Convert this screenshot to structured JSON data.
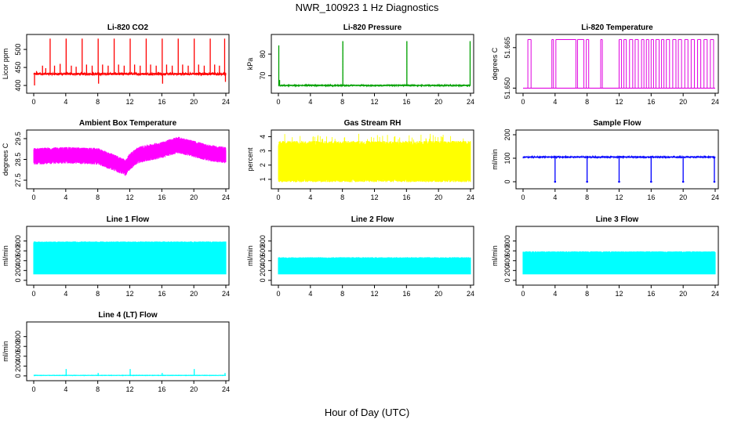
{
  "figure": {
    "title": "NWR_100923  1 Hz Diagnostics",
    "xlabel": "Hour of Day (UTC)"
  },
  "chart_data": [
    {
      "type": "line",
      "id": "co2",
      "title": "Li-820 CO2",
      "ylabel": "Licor ppm",
      "color": "#ff0000",
      "xlim": [
        0,
        24
      ],
      "ylim": [
        385,
        535
      ],
      "xticks": [
        0,
        4,
        8,
        12,
        16,
        20,
        24
      ],
      "xtick_labels": [
        "0",
        "4",
        "8",
        "12",
        "16",
        "20",
        "24"
      ],
      "yticks": [
        400,
        450,
        500
      ],
      "ytick_labels": [
        "400",
        "450",
        "500"
      ],
      "series": [
        {
          "name": "CO2",
          "baseline": 432,
          "noise": 3,
          "spikes": [
            [
              0.1,
              400
            ],
            [
              0.35,
              440
            ],
            [
              1.1,
              455
            ],
            [
              1.5,
              448
            ],
            [
              2.05,
              530
            ],
            [
              2.6,
              455
            ],
            [
              3.3,
              460
            ],
            [
              4.05,
              530
            ],
            [
              4.7,
              455
            ],
            [
              5.3,
              452
            ],
            [
              6.05,
              530
            ],
            [
              6.6,
              458
            ],
            [
              7.3,
              455
            ],
            [
              8.05,
              530
            ],
            [
              8.1,
              405
            ],
            [
              8.6,
              458
            ],
            [
              9.3,
              455
            ],
            [
              10.05,
              530
            ],
            [
              10.6,
              458
            ],
            [
              11.3,
              455
            ],
            [
              12.05,
              530
            ],
            [
              12.6,
              458
            ],
            [
              13.3,
              455
            ],
            [
              14.05,
              530
            ],
            [
              14.6,
              458
            ],
            [
              15.3,
              455
            ],
            [
              16.05,
              530
            ],
            [
              16.1,
              405
            ],
            [
              16.6,
              458
            ],
            [
              17.3,
              455
            ],
            [
              18.05,
              530
            ],
            [
              18.6,
              458
            ],
            [
              19.3,
              455
            ],
            [
              20.05,
              530
            ],
            [
              20.6,
              458
            ],
            [
              21.3,
              455
            ],
            [
              22.05,
              530
            ],
            [
              22.6,
              458
            ],
            [
              23.2,
              455
            ],
            [
              23.85,
              530
            ],
            [
              23.95,
              410
            ]
          ]
        }
      ]
    },
    {
      "type": "line",
      "id": "pressure",
      "title": "Li-820 Pressure",
      "ylabel": "kPa",
      "color": "#00a000",
      "xlim": [
        0,
        24
      ],
      "ylim": [
        63,
        88
      ],
      "xticks": [
        0,
        4,
        8,
        12,
        16,
        20,
        24
      ],
      "xtick_labels": [
        "0",
        "4",
        "8",
        "12",
        "16",
        "20",
        "24"
      ],
      "yticks": [
        70,
        80
      ],
      "ytick_labels": [
        "70",
        "80"
      ],
      "series": [
        {
          "name": "Pressure",
          "baseline": 65.5,
          "noise": 0.2,
          "spikes": [
            [
              0.05,
              84
            ],
            [
              0.15,
              68
            ],
            [
              8.05,
              86
            ],
            [
              16.05,
              86
            ],
            [
              23.95,
              86
            ]
          ]
        }
      ]
    },
    {
      "type": "line",
      "id": "licor_temp",
      "title": "Li-820 Temperature",
      "ylabel": "degrees C",
      "color": "#e000e0",
      "xlim": [
        0,
        24
      ],
      "ylim": [
        51.649,
        51.669
      ],
      "xticks": [
        0,
        4,
        8,
        12,
        16,
        20,
        24
      ],
      "xtick_labels": [
        "0",
        "4",
        "8",
        "12",
        "16",
        "20",
        "24"
      ],
      "yticks": [
        51.65,
        51.665
      ],
      "ytick_labels": [
        "51.650",
        "51.665"
      ],
      "series": [
        {
          "name": "Temperature",
          "low": 51.65,
          "high": 51.668,
          "jumps": [
            0.6,
            1.0,
            3.6,
            3.8,
            4.1,
            6.6,
            6.8,
            7.6,
            7.9,
            8.2,
            9.7,
            9.9,
            12.0,
            12.3,
            12.6,
            12.9,
            13.3,
            13.7,
            14.0,
            14.4,
            14.8,
            15.1,
            15.4,
            15.7,
            16.0,
            16.3,
            16.6,
            17.0,
            17.3,
            17.6,
            17.9,
            18.3,
            18.7,
            19.1,
            19.4,
            19.8,
            20.2,
            20.6,
            21.0,
            21.4,
            21.8,
            22.2,
            22.6,
            23.0,
            23.4,
            23.8
          ]
        }
      ]
    },
    {
      "type": "line",
      "id": "ambient",
      "title": "Ambient Box Temperature",
      "ylabel": "degrees C",
      "color": "#ff00ff",
      "xlim": [
        0,
        24
      ],
      "ylim": [
        27.2,
        29.8
      ],
      "xticks": [
        0,
        4,
        8,
        12,
        16,
        20,
        24
      ],
      "xtick_labels": [
        "0",
        "4",
        "8",
        "12",
        "16",
        "20",
        "24"
      ],
      "yticks": [
        27.5,
        28.5,
        29.5
      ],
      "ytick_labels": [
        "27.5",
        "28.5",
        "29.5"
      ],
      "series": [
        {
          "name": "Ambient",
          "mean_x": [
            0,
            4,
            8,
            10,
            11.5,
            12,
            13,
            14,
            16,
            18,
            20,
            22,
            24
          ],
          "mean_y": [
            28.65,
            28.7,
            28.65,
            28.35,
            28.1,
            28.4,
            28.7,
            28.8,
            28.95,
            29.2,
            29.0,
            28.8,
            28.7
          ],
          "amplitude": 0.4
        }
      ]
    },
    {
      "type": "line",
      "id": "rh",
      "title": "Gas Stream RH",
      "ylabel": "percent",
      "color": "#ffff00",
      "xlim": [
        0,
        24
      ],
      "ylim": [
        0.5,
        4.3
      ],
      "xticks": [
        0,
        4,
        8,
        12,
        16,
        20,
        24
      ],
      "xtick_labels": [
        "0",
        "4",
        "8",
        "12",
        "16",
        "20",
        "24"
      ],
      "yticks": [
        1,
        2,
        3,
        4
      ],
      "ytick_labels": [
        "1",
        "2",
        "3",
        "4"
      ],
      "series": [
        {
          "name": "RH",
          "low": 0.8,
          "high": 3.7,
          "mean": 2.25
        }
      ]
    },
    {
      "type": "line",
      "id": "sample_flow",
      "title": "Sample Flow",
      "ylabel": "ml/min",
      "color": "#0000ff",
      "xlim": [
        0,
        24
      ],
      "ylim": [
        -20,
        210
      ],
      "xticks": [
        0,
        4,
        8,
        12,
        16,
        20,
        24
      ],
      "xtick_labels": [
        "0",
        "4",
        "8",
        "12",
        "16",
        "20",
        "24"
      ],
      "yticks": [
        0,
        100,
        200
      ],
      "ytick_labels": [
        "0",
        "100",
        "200"
      ],
      "series": [
        {
          "name": "Sample Flow",
          "baseline": 105,
          "noise": 2,
          "dips": [
            [
              4.0,
              0
            ],
            [
              8.0,
              0
            ],
            [
              12.0,
              0
            ],
            [
              16.0,
              0
            ],
            [
              20.0,
              0
            ],
            [
              23.9,
              0
            ]
          ]
        }
      ]
    },
    {
      "type": "area",
      "id": "line1",
      "title": "Line 1 Flow",
      "ylabel": "ml/min",
      "color": "#00ffff",
      "xlim": [
        0,
        24
      ],
      "ylim": [
        -50,
        1050
      ],
      "xticks": [
        0,
        4,
        8,
        12,
        16,
        20,
        24
      ],
      "xtick_labels": [
        "0",
        "4",
        "8",
        "12",
        "16",
        "20",
        "24"
      ],
      "yticks": [
        0,
        200,
        400,
        600,
        800
      ],
      "ytick_labels": [
        "0",
        "200",
        "400",
        "600",
        "800"
      ],
      "series": [
        {
          "name": "Line 1",
          "low": 120,
          "high": 790,
          "gaps": [
            3.95,
            7.95,
            11.95,
            15.95,
            19.95
          ]
        }
      ]
    },
    {
      "type": "area",
      "id": "line2",
      "title": "Line 2 Flow",
      "ylabel": "ml/min",
      "color": "#00ffff",
      "xlim": [
        0,
        24
      ],
      "ylim": [
        -50,
        1050
      ],
      "xticks": [
        0,
        4,
        8,
        12,
        16,
        20,
        24
      ],
      "xtick_labels": [
        "0",
        "4",
        "8",
        "12",
        "16",
        "20",
        "24"
      ],
      "yticks": [
        0,
        200,
        400,
        600,
        800
      ],
      "ytick_labels": [
        "0",
        "200",
        "400",
        "600",
        "800"
      ],
      "series": [
        {
          "name": "Line 2",
          "low": 120,
          "high": 470,
          "gaps": [
            1.1,
            2.0,
            3.2,
            3.95,
            5.0,
            6.1,
            7.0,
            7.95,
            9.1,
            10.0,
            11.0,
            11.95,
            13.1,
            14.0,
            15.0,
            15.95,
            17.0,
            18.1,
            19.0,
            19.95,
            21.0,
            22.1,
            23.0
          ]
        }
      ]
    },
    {
      "type": "area",
      "id": "line3",
      "title": "Line 3 Flow",
      "ylabel": "ml/min",
      "color": "#00ffff",
      "xlim": [
        0,
        24
      ],
      "ylim": [
        -50,
        1050
      ],
      "xticks": [
        0,
        4,
        8,
        12,
        16,
        20,
        24
      ],
      "xtick_labels": [
        "0",
        "4",
        "8",
        "12",
        "16",
        "20",
        "24"
      ],
      "yticks": [
        0,
        200,
        400,
        600,
        800
      ],
      "ytick_labels": [
        "0",
        "200",
        "400",
        "600",
        "800"
      ],
      "series": [
        {
          "name": "Line 3",
          "low": 120,
          "high": 590,
          "gaps": [
            1.0,
            2.0,
            3.0,
            3.95,
            5.0,
            6.0,
            7.0,
            7.95,
            9.0,
            10.0,
            11.0,
            11.95,
            13.0,
            14.0,
            15.0,
            15.95,
            17.0,
            18.0,
            19.0,
            19.95,
            21.0,
            22.0,
            23.0
          ]
        }
      ]
    },
    {
      "type": "line",
      "id": "line4",
      "title": "Line 4 (LT) Flow",
      "ylabel": "ml/min",
      "color": "#00ffff",
      "xlim": [
        0,
        24
      ],
      "ylim": [
        -50,
        1050
      ],
      "xticks": [
        0,
        4,
        8,
        12,
        16,
        20,
        24
      ],
      "xtick_labels": [
        "0",
        "4",
        "8",
        "12",
        "16",
        "20",
        "24"
      ],
      "yticks": [
        0,
        200,
        400,
        600,
        800
      ],
      "ytick_labels": [
        "0",
        "200",
        "400",
        "600",
        "800"
      ],
      "series": [
        {
          "name": "Line 4",
          "baseline": 10,
          "noise": 3,
          "spikes": [
            [
              4.05,
              140
            ],
            [
              8.05,
              60
            ],
            [
              12.05,
              140
            ],
            [
              16.05,
              60
            ],
            [
              20.05,
              140
            ],
            [
              23.9,
              60
            ]
          ]
        }
      ]
    }
  ]
}
